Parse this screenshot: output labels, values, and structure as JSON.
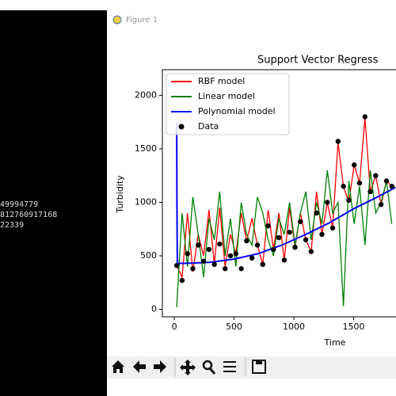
{
  "terminal": {
    "lines": [
      "49994779",
      "812760917168",
      "22339"
    ]
  },
  "window": {
    "title": "Figure 1"
  },
  "chart_data": {
    "type": "line",
    "title": "Support Vector Regress",
    "xlabel": "Time",
    "ylabel": "Turbidity",
    "xlim": [
      -100,
      2100
    ],
    "ylim": [
      -70,
      2240
    ],
    "xticks": [
      0,
      500,
      1000,
      1500
    ],
    "yticks": [
      0,
      500,
      1000,
      1500,
      2000
    ],
    "legend": "upper left",
    "series": [
      {
        "name": "RBF model",
        "color": "#ff0000",
        "style": "line",
        "x": [
          20,
          65,
          110,
          155,
          200,
          245,
          290,
          335,
          380,
          425,
          470,
          515,
          560,
          605,
          650,
          695,
          740,
          785,
          830,
          875,
          920,
          965,
          1010,
          1055,
          1100,
          1145,
          1190,
          1235,
          1280,
          1325,
          1370,
          1415,
          1460,
          1505,
          1550,
          1595,
          1640,
          1685,
          1730,
          1775,
          1820
        ],
        "values": [
          410,
          300,
          900,
          350,
          700,
          500,
          930,
          420,
          950,
          400,
          700,
          520,
          900,
          640,
          850,
          600,
          420,
          930,
          560,
          900,
          460,
          950,
          580,
          900,
          650,
          540,
          1100,
          700,
          1000,
          760,
          1560,
          1150,
          1000,
          1350,
          1180,
          1790,
          1100,
          1250,
          980,
          1200,
          1150
        ]
      },
      {
        "name": "Linear model",
        "color": "#008000",
        "style": "line",
        "x": [
          20,
          65,
          110,
          155,
          200,
          245,
          290,
          335,
          380,
          425,
          470,
          515,
          560,
          605,
          650,
          695,
          740,
          785,
          830,
          875,
          920,
          965,
          1010,
          1055,
          1100,
          1145,
          1190,
          1235,
          1280,
          1325,
          1370,
          1415,
          1460,
          1505,
          1550,
          1595,
          1640,
          1685,
          1730,
          1775,
          1820
        ],
        "values": [
          20,
          900,
          400,
          1050,
          700,
          300,
          850,
          650,
          1100,
          500,
          850,
          400,
          1000,
          700,
          600,
          1050,
          900,
          650,
          500,
          850,
          700,
          1000,
          600,
          900,
          1100,
          650,
          1000,
          800,
          1300,
          900,
          1000,
          30,
          1200,
          800,
          1150,
          600,
          1300,
          900,
          1000,
          1200,
          800
        ]
      },
      {
        "name": "Polynomial model",
        "color": "#0000ff",
        "style": "line",
        "x": [
          20,
          22,
          25,
          100,
          300,
          500,
          700,
          900,
          1100,
          1300,
          1500,
          1700,
          1850
        ],
        "values": [
          1750,
          1000,
          430,
          430,
          440,
          470,
          520,
          600,
          700,
          810,
          940,
          1050,
          1140
        ]
      },
      {
        "name": "Data",
        "color": "#000000",
        "style": "scatter",
        "x": [
          20,
          65,
          110,
          155,
          200,
          245,
          290,
          335,
          380,
          425,
          470,
          515,
          560,
          605,
          650,
          695,
          740,
          785,
          830,
          875,
          920,
          965,
          1010,
          1055,
          1100,
          1145,
          1190,
          1235,
          1280,
          1325,
          1370,
          1415,
          1460,
          1505,
          1550,
          1595,
          1640,
          1685,
          1730,
          1775,
          1820
        ],
        "values": [
          410,
          270,
          520,
          380,
          600,
          450,
          560,
          420,
          610,
          380,
          500,
          520,
          380,
          640,
          480,
          600,
          420,
          780,
          560,
          670,
          460,
          720,
          580,
          820,
          650,
          540,
          900,
          700,
          1000,
          760,
          1570,
          1150,
          1020,
          1350,
          1180,
          1800,
          1100,
          1250,
          980,
          1200,
          1150
        ]
      }
    ]
  }
}
